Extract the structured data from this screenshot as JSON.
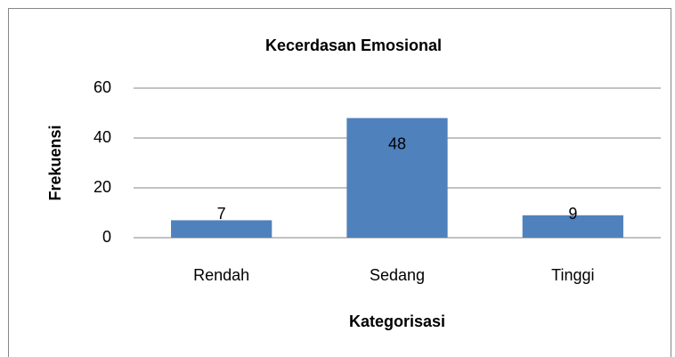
{
  "chart_data": {
    "type": "bar",
    "title": "Kecerdasan Emosional",
    "x_label": "Kategorisasi",
    "y_label": "Frekuensi",
    "categories": [
      "Rendah",
      "Sedang",
      "Tinggi"
    ],
    "values": [
      7,
      48,
      9
    ],
    "color": "#4f81bd",
    "ylim": [
      0,
      60
    ],
    "yticks": [
      0,
      20,
      40,
      60
    ],
    "grid": true
  }
}
